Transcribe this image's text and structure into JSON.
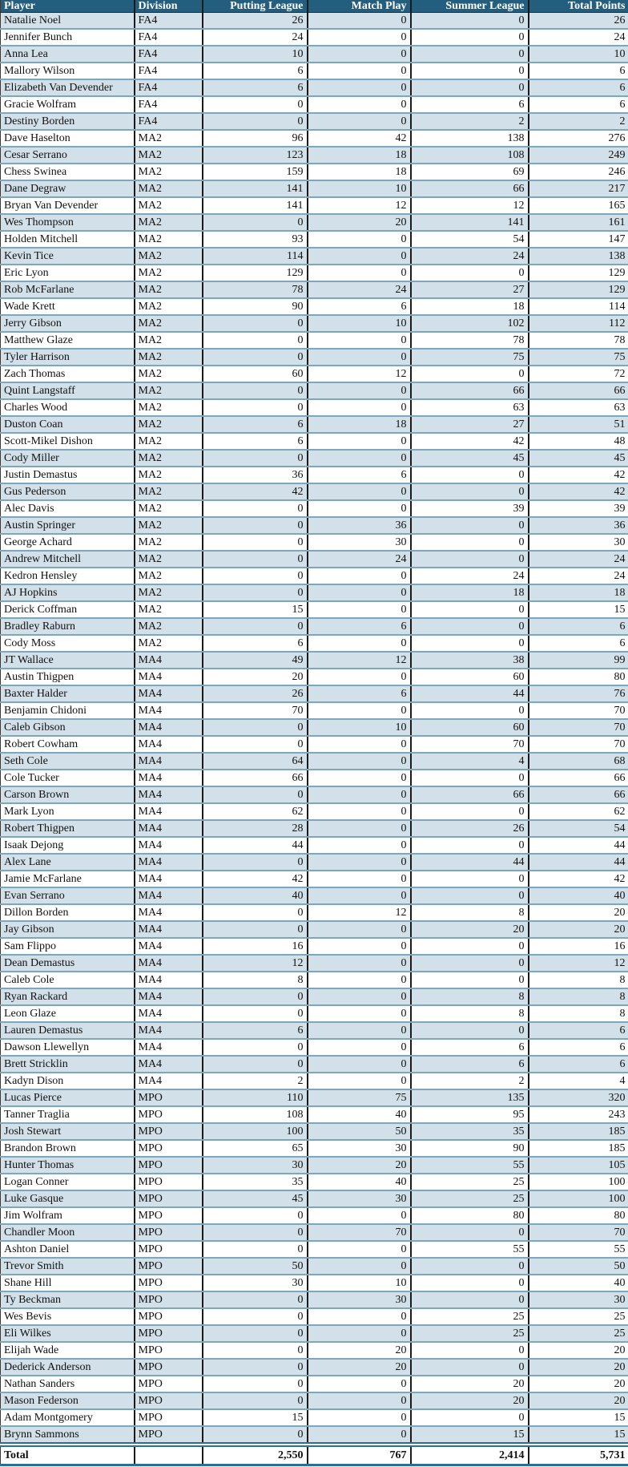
{
  "table": {
    "columns": [
      {
        "key": "player",
        "label": "Player",
        "align": "left"
      },
      {
        "key": "division",
        "label": "Division",
        "align": "left"
      },
      {
        "key": "putting",
        "label": "Putting League",
        "align": "right"
      },
      {
        "key": "match",
        "label": "Match Play",
        "align": "right"
      },
      {
        "key": "summer",
        "label": "Summer League",
        "align": "right"
      },
      {
        "key": "total",
        "label": "Total Points",
        "align": "right"
      }
    ],
    "rows": [
      [
        "Natalie Noel",
        "FA4",
        26,
        0,
        0,
        26
      ],
      [
        "Jennifer Bunch",
        "FA4",
        24,
        0,
        0,
        24
      ],
      [
        "Anna Lea",
        "FA4",
        10,
        0,
        0,
        10
      ],
      [
        "Mallory Wilson",
        "FA4",
        6,
        0,
        0,
        6
      ],
      [
        "Elizabeth Van Devender",
        "FA4",
        6,
        0,
        0,
        6
      ],
      [
        "Gracie Wolfram",
        "FA4",
        0,
        0,
        6,
        6
      ],
      [
        "Destiny Borden",
        "FA4",
        0,
        0,
        2,
        2
      ],
      [
        "Dave Haselton",
        "MA2",
        96,
        42,
        138,
        276
      ],
      [
        "Cesar Serrano",
        "MA2",
        123,
        18,
        108,
        249
      ],
      [
        "Chess Swinea",
        "MA2",
        159,
        18,
        69,
        246
      ],
      [
        "Dane Degraw",
        "MA2",
        141,
        10,
        66,
        217
      ],
      [
        "Bryan Van Devender",
        "MA2",
        141,
        12,
        12,
        165
      ],
      [
        "Wes Thompson",
        "MA2",
        0,
        20,
        141,
        161
      ],
      [
        "Holden Mitchell",
        "MA2",
        93,
        0,
        54,
        147
      ],
      [
        "Kevin Tice",
        "MA2",
        114,
        0,
        24,
        138
      ],
      [
        "Eric Lyon",
        "MA2",
        129,
        0,
        0,
        129
      ],
      [
        "Rob McFarlane",
        "MA2",
        78,
        24,
        27,
        129
      ],
      [
        "Wade Krett",
        "MA2",
        90,
        6,
        18,
        114
      ],
      [
        "Jerry Gibson",
        "MA2",
        0,
        10,
        102,
        112
      ],
      [
        "Matthew Glaze",
        "MA2",
        0,
        0,
        78,
        78
      ],
      [
        "Tyler Harrison",
        "MA2",
        0,
        0,
        75,
        75
      ],
      [
        "Zach Thomas",
        "MA2",
        60,
        12,
        0,
        72
      ],
      [
        "Quint Langstaff",
        "MA2",
        0,
        0,
        66,
        66
      ],
      [
        "Charles Wood",
        "MA2",
        0,
        0,
        63,
        63
      ],
      [
        "Duston Coan",
        "MA2",
        6,
        18,
        27,
        51
      ],
      [
        "Scott-Mikel Dishon",
        "MA2",
        6,
        0,
        42,
        48
      ],
      [
        "Cody Miller",
        "MA2",
        0,
        0,
        45,
        45
      ],
      [
        "Justin Demastus",
        "MA2",
        36,
        6,
        0,
        42
      ],
      [
        "Gus Pederson",
        "MA2",
        42,
        0,
        0,
        42
      ],
      [
        "Alec Davis",
        "MA2",
        0,
        0,
        39,
        39
      ],
      [
        "Austin Springer",
        "MA2",
        0,
        36,
        0,
        36
      ],
      [
        "George Achard",
        "MA2",
        0,
        30,
        0,
        30
      ],
      [
        "Andrew Mitchell",
        "MA2",
        0,
        24,
        0,
        24
      ],
      [
        "Kedron Hensley",
        "MA2",
        0,
        0,
        24,
        24
      ],
      [
        "AJ Hopkins",
        "MA2",
        0,
        0,
        18,
        18
      ],
      [
        "Derick Coffman",
        "MA2",
        15,
        0,
        0,
        15
      ],
      [
        "Bradley Raburn",
        "MA2",
        0,
        6,
        0,
        6
      ],
      [
        "Cody Moss",
        "MA2",
        6,
        0,
        0,
        6
      ],
      [
        "JT Wallace",
        "MA4",
        49,
        12,
        38,
        99
      ],
      [
        "Austin Thigpen",
        "MA4",
        20,
        0,
        60,
        80
      ],
      [
        "Baxter Halder",
        "MA4",
        26,
        6,
        44,
        76
      ],
      [
        "Benjamin Chidoni",
        "MA4",
        70,
        0,
        0,
        70
      ],
      [
        "Caleb Gibson",
        "MA4",
        0,
        10,
        60,
        70
      ],
      [
        "Robert Cowham",
        "MA4",
        0,
        0,
        70,
        70
      ],
      [
        "Seth Cole",
        "MA4",
        64,
        0,
        4,
        68
      ],
      [
        "Cole Tucker",
        "MA4",
        66,
        0,
        0,
        66
      ],
      [
        "Carson Brown",
        "MA4",
        0,
        0,
        66,
        66
      ],
      [
        "Mark Lyon",
        "MA4",
        62,
        0,
        0,
        62
      ],
      [
        "Robert Thigpen",
        "MA4",
        28,
        0,
        26,
        54
      ],
      [
        "Isaak Dejong",
        "MA4",
        44,
        0,
        0,
        44
      ],
      [
        "Alex Lane",
        "MA4",
        0,
        0,
        44,
        44
      ],
      [
        "Jamie McFarlane",
        "MA4",
        42,
        0,
        0,
        42
      ],
      [
        "Evan Serrano",
        "MA4",
        40,
        0,
        0,
        40
      ],
      [
        "Dillon Borden",
        "MA4",
        0,
        12,
        8,
        20
      ],
      [
        "Jay Gibson",
        "MA4",
        0,
        0,
        20,
        20
      ],
      [
        "Sam Flippo",
        "MA4",
        16,
        0,
        0,
        16
      ],
      [
        "Dean Demastus",
        "MA4",
        12,
        0,
        0,
        12
      ],
      [
        "Caleb Cole",
        "MA4",
        8,
        0,
        0,
        8
      ],
      [
        "Ryan Rackard",
        "MA4",
        0,
        0,
        8,
        8
      ],
      [
        "Leon Glaze",
        "MA4",
        0,
        0,
        8,
        8
      ],
      [
        "Lauren Demastus",
        "MA4",
        6,
        0,
        0,
        6
      ],
      [
        "Dawson Llewellyn",
        "MA4",
        0,
        0,
        6,
        6
      ],
      [
        "Brett Stricklin",
        "MA4",
        0,
        0,
        6,
        6
      ],
      [
        "Kadyn Dison",
        "MA4",
        2,
        0,
        2,
        4
      ],
      [
        "Lucas Pierce",
        "MPO",
        110,
        75,
        135,
        320
      ],
      [
        "Tanner Traglia",
        "MPO",
        108,
        40,
        95,
        243
      ],
      [
        "Josh Stewart",
        "MPO",
        100,
        50,
        35,
        185
      ],
      [
        "Brandon Brown",
        "MPO",
        65,
        30,
        90,
        185
      ],
      [
        "Hunter Thomas",
        "MPO",
        30,
        20,
        55,
        105
      ],
      [
        "Logan Conner",
        "MPO",
        35,
        40,
        25,
        100
      ],
      [
        "Luke Gasque",
        "MPO",
        45,
        30,
        25,
        100
      ],
      [
        "Jim Wolfram",
        "MPO",
        0,
        0,
        80,
        80
      ],
      [
        "Chandler Moon",
        "MPO",
        0,
        70,
        0,
        70
      ],
      [
        "Ashton Daniel",
        "MPO",
        0,
        0,
        55,
        55
      ],
      [
        "Trevor Smith",
        "MPO",
        50,
        0,
        0,
        50
      ],
      [
        "Shane Hill",
        "MPO",
        30,
        10,
        0,
        40
      ],
      [
        "Ty Beckman",
        "MPO",
        0,
        30,
        0,
        30
      ],
      [
        "Wes Bevis",
        "MPO",
        0,
        0,
        25,
        25
      ],
      [
        "Eli Wilkes",
        "MPO",
        0,
        0,
        25,
        25
      ],
      [
        "Elijah Wade",
        "MPO",
        0,
        20,
        0,
        20
      ],
      [
        "Dederick Anderson",
        "MPO",
        0,
        20,
        0,
        20
      ],
      [
        "Nathan Sanders",
        "MPO",
        0,
        0,
        20,
        20
      ],
      [
        "Mason Federson",
        "MPO",
        0,
        0,
        20,
        20
      ],
      [
        "Adam Montgomery",
        "MPO",
        15,
        0,
        0,
        15
      ],
      [
        "Brynn Sammons",
        "MPO",
        0,
        0,
        15,
        15
      ]
    ],
    "total_row": [
      "Total",
      "",
      "2,550",
      "767",
      "2,414",
      "5,731"
    ]
  },
  "colors": {
    "header_bg": "#235e7e",
    "header_text": "#ffffff",
    "row_alt_bg": "#d2e0e9",
    "row_bg": "#ffffff",
    "row_divider": "#7fa7ba",
    "column_divider": "#1a1a1a",
    "total_border": "#2b6f92"
  }
}
